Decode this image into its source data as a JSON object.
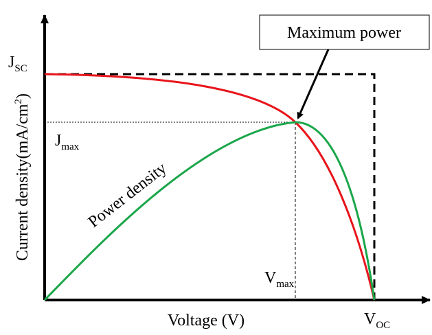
{
  "callout": "Maximum power",
  "y_axis_label": {
    "main": "Current density(mA/cm",
    "sup": "2",
    "end": ")"
  },
  "x_axis_label": "Voltage (V)",
  "jsc": {
    "base": "J",
    "sub": "SC"
  },
  "jmax": {
    "base": "J",
    "sub": "max"
  },
  "vmax": {
    "base": "V",
    "sub": "max"
  },
  "voc": {
    "base": "V",
    "sub": "OC"
  },
  "curve_label": "Power density"
}
